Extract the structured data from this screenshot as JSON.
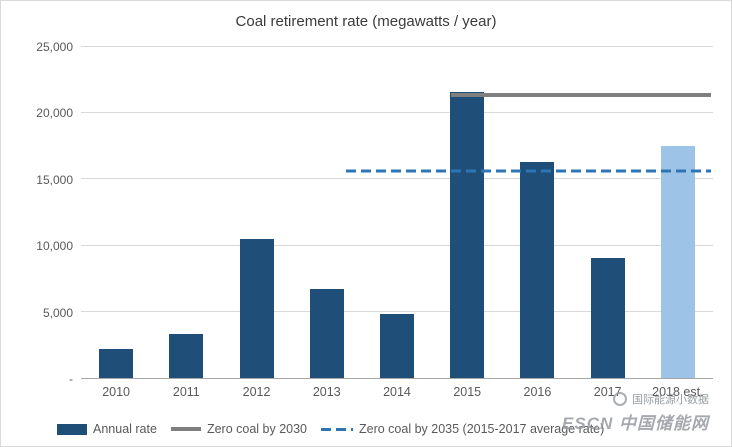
{
  "chart_data": {
    "type": "bar",
    "title": "Coal retirement rate (megawatts / year)",
    "categories": [
      "2010",
      "2011",
      "2012",
      "2013",
      "2014",
      "2015",
      "2016",
      "2017",
      "2018 est."
    ],
    "values": [
      2200,
      3300,
      10500,
      6700,
      4800,
      21600,
      16300,
      9100,
      17500
    ],
    "bar_color": "#1f4e79",
    "estimate_bar_index": 8,
    "estimate_bar_color": "#9dc3e6",
    "ylim": [
      0,
      25000
    ],
    "yticks": [
      {
        "value": 0,
        "label": "-"
      },
      {
        "value": 5000,
        "label": "5,000"
      },
      {
        "value": 10000,
        "label": "10,000"
      },
      {
        "value": 15000,
        "label": "15,000"
      },
      {
        "value": 20000,
        "label": "20,000"
      },
      {
        "value": 25000,
        "label": "25,000"
      }
    ],
    "grid": true,
    "legend_position": "bottom",
    "reference_lines": [
      {
        "name": "zero-coal-2030",
        "label": "Zero coal by 2030",
        "value": 21400,
        "style": "solid",
        "color": "#7f7f7f",
        "start_fraction": 0.585
      },
      {
        "name": "zero-coal-2035",
        "label": "Zero coal by 2035 (2015-2017 average rate)",
        "value": 15667,
        "style": "dashed",
        "color": "#2e75b6",
        "start_fraction": 0.42
      }
    ]
  },
  "legend": {
    "items": [
      {
        "label": "Annual rate",
        "swatch": "bar",
        "color": "#1f4e79"
      },
      {
        "label": "Zero coal by 2030",
        "swatch": "solid-line",
        "color": "#7f7f7f"
      },
      {
        "label": "Zero coal by 2035 (2015-2017 average rate)",
        "swatch": "dashed-line",
        "color": "#2e75b6"
      }
    ]
  },
  "watermark": {
    "line1": "国际能源小数据",
    "line2": "ESCN 中国储能网"
  }
}
